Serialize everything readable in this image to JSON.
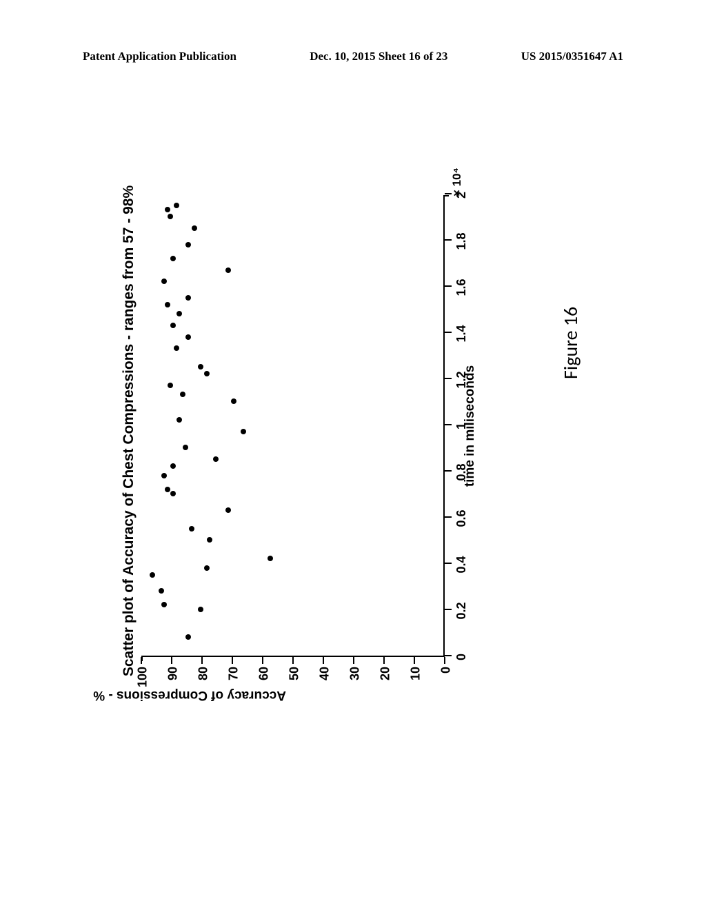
{
  "header": {
    "left": "Patent Application Publication",
    "center": "Dec. 10, 2015  Sheet 16 of 23",
    "right": "US 2015/0351647 A1"
  },
  "chart": {
    "type": "scatter",
    "title": "Scatter plot of Accuracy of Chest Compressions - ranges from 57 - 98%",
    "xlabel": "time in miliseconds",
    "ylabel": "Accuracy of Compressions - %",
    "x_multiplier": "× 10⁴",
    "xlim": [
      0,
      2
    ],
    "ylim": [
      0,
      100
    ],
    "xticks": [
      0,
      0.2,
      0.4,
      0.6,
      0.8,
      1,
      1.2,
      1.4,
      1.6,
      1.8,
      2
    ],
    "yticks": [
      0,
      10,
      20,
      30,
      40,
      50,
      60,
      70,
      80,
      90,
      100
    ],
    "marker_color": "#000000",
    "marker_size": 8,
    "axis_color": "#000000",
    "background_color": "#ffffff",
    "points": [
      {
        "x": 0.08,
        "y": 84
      },
      {
        "x": 0.2,
        "y": 80
      },
      {
        "x": 0.22,
        "y": 92
      },
      {
        "x": 0.28,
        "y": 93
      },
      {
        "x": 0.35,
        "y": 96
      },
      {
        "x": 0.38,
        "y": 78
      },
      {
        "x": 0.42,
        "y": 57
      },
      {
        "x": 0.5,
        "y": 77
      },
      {
        "x": 0.55,
        "y": 83
      },
      {
        "x": 0.63,
        "y": 71
      },
      {
        "x": 0.7,
        "y": 89
      },
      {
        "x": 0.72,
        "y": 91
      },
      {
        "x": 0.78,
        "y": 92
      },
      {
        "x": 0.82,
        "y": 89
      },
      {
        "x": 0.85,
        "y": 75
      },
      {
        "x": 0.9,
        "y": 85
      },
      {
        "x": 0.97,
        "y": 66
      },
      {
        "x": 1.02,
        "y": 87
      },
      {
        "x": 1.1,
        "y": 69
      },
      {
        "x": 1.13,
        "y": 86
      },
      {
        "x": 1.17,
        "y": 90
      },
      {
        "x": 1.22,
        "y": 78
      },
      {
        "x": 1.25,
        "y": 80
      },
      {
        "x": 1.33,
        "y": 88
      },
      {
        "x": 1.38,
        "y": 84
      },
      {
        "x": 1.43,
        "y": 89
      },
      {
        "x": 1.48,
        "y": 87
      },
      {
        "x": 1.52,
        "y": 91
      },
      {
        "x": 1.55,
        "y": 84
      },
      {
        "x": 1.62,
        "y": 92
      },
      {
        "x": 1.67,
        "y": 71
      },
      {
        "x": 1.72,
        "y": 89
      },
      {
        "x": 1.78,
        "y": 84
      },
      {
        "x": 1.85,
        "y": 82
      },
      {
        "x": 1.9,
        "y": 90
      },
      {
        "x": 1.93,
        "y": 91
      },
      {
        "x": 1.95,
        "y": 88
      }
    ]
  },
  "caption": "Figure 16"
}
